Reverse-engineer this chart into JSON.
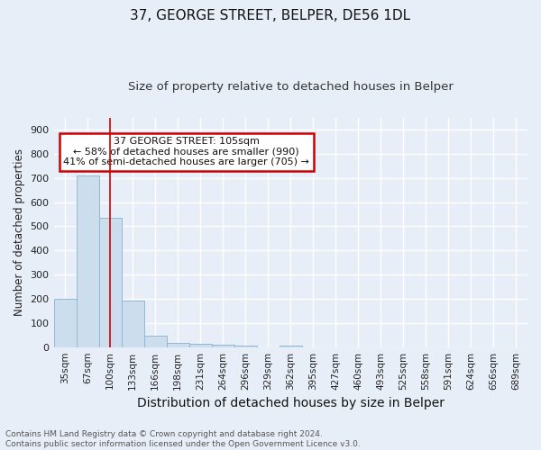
{
  "title": "37, GEORGE STREET, BELPER, DE56 1DL",
  "subtitle": "Size of property relative to detached houses in Belper",
  "xlabel": "Distribution of detached houses by size in Belper",
  "ylabel": "Number of detached properties",
  "categories": [
    "35sqm",
    "67sqm",
    "100sqm",
    "133sqm",
    "166sqm",
    "198sqm",
    "231sqm",
    "264sqm",
    "296sqm",
    "329sqm",
    "362sqm",
    "395sqm",
    "427sqm",
    "460sqm",
    "493sqm",
    "525sqm",
    "558sqm",
    "591sqm",
    "624sqm",
    "656sqm",
    "689sqm"
  ],
  "values": [
    200,
    710,
    535,
    193,
    47,
    18,
    13,
    10,
    8,
    0,
    8,
    0,
    0,
    0,
    0,
    0,
    0,
    0,
    0,
    0,
    0
  ],
  "bar_color": "#ccdded",
  "bar_edge_color": "#92b8d4",
  "marker_line_index": 2,
  "marker_line_color": "#cc0000",
  "ylim": [
    0,
    950
  ],
  "yticks": [
    0,
    100,
    200,
    300,
    400,
    500,
    600,
    700,
    800,
    900
  ],
  "annotation_box_text": "  37 GEORGE STREET: 105sqm  \n← 58% of detached houses are smaller (990)\n41% of semi-detached houses are larger (705) →",
  "annotation_box_color": "#ffffff",
  "annotation_box_edge_color": "#cc0000",
  "footnote": "Contains HM Land Registry data © Crown copyright and database right 2024.\nContains public sector information licensed under the Open Government Licence v3.0.",
  "background_color": "#e8eef8",
  "grid_color": "#ffffff",
  "title_fontsize": 11,
  "subtitle_fontsize": 9.5,
  "xlabel_fontsize": 10,
  "ylabel_fontsize": 8.5,
  "tick_fontsize": 7.5,
  "annotation_fontsize": 8,
  "footnote_fontsize": 6.5
}
